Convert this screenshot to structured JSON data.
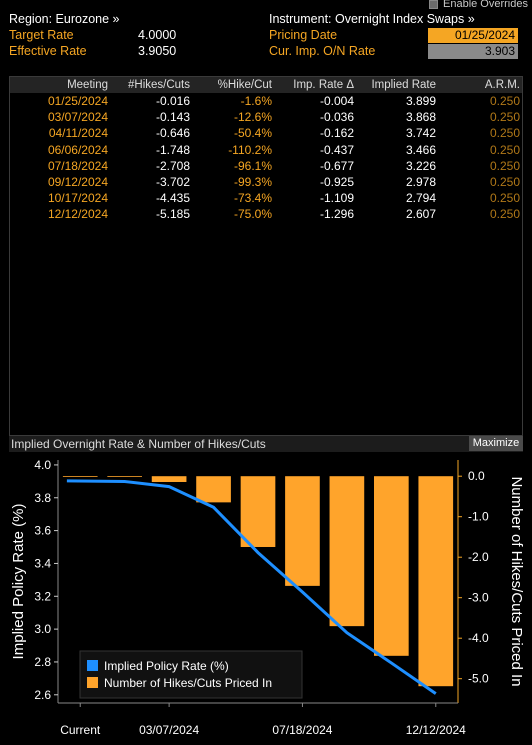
{
  "header": {
    "enable_overrides": "Enable Overrides",
    "region": "Region: Eurozone »",
    "instrument": "Instrument: Overnight Index Swaps »",
    "target_rate_label": "Target Rate",
    "target_rate_value": "4.0000",
    "effective_rate_label": "Effective Rate",
    "effective_rate_value": "3.9050",
    "pricing_date_label": "Pricing Date",
    "pricing_date_value": "01/25/2024",
    "cur_imp_label": "Cur. Imp. O/N Rate",
    "cur_imp_value": "3.903"
  },
  "table": {
    "columns": [
      "Meeting",
      "#Hikes/Cuts",
      "%Hike/Cut",
      "Imp. Rate Δ",
      "Implied Rate",
      "A.R.M."
    ],
    "rows": [
      [
        "01/25/2024",
        "-0.016",
        "-1.6%",
        "-0.004",
        "3.899",
        "0.250"
      ],
      [
        "03/07/2024",
        "-0.143",
        "-12.6%",
        "-0.036",
        "3.868",
        "0.250"
      ],
      [
        "04/11/2024",
        "-0.646",
        "-50.4%",
        "-0.162",
        "3.742",
        "0.250"
      ],
      [
        "06/06/2024",
        "-1.748",
        "-110.2%",
        "-0.437",
        "3.466",
        "0.250"
      ],
      [
        "07/18/2024",
        "-2.708",
        "-96.1%",
        "-0.677",
        "3.226",
        "0.250"
      ],
      [
        "09/12/2024",
        "-3.702",
        "-99.3%",
        "-0.925",
        "2.978",
        "0.250"
      ],
      [
        "10/17/2024",
        "-4.435",
        "-73.4%",
        "-1.109",
        "2.794",
        "0.250"
      ],
      [
        "12/12/2024",
        "-5.185",
        "-75.0%",
        "-1.296",
        "2.607",
        "0.250"
      ]
    ]
  },
  "chart_panel": {
    "title": "Implied Overnight Rate & Number of Hikes/Cuts",
    "maximize_label": "Maximize"
  },
  "chart_data": {
    "type": "bar",
    "categories": [
      "Current",
      "01/25/2024",
      "03/07/2024",
      "04/11/2024",
      "06/06/2024",
      "07/18/2024",
      "09/12/2024",
      "10/17/2024",
      "12/12/2024"
    ],
    "x_tick_labels": [
      "Current",
      "03/07/2024",
      "07/18/2024",
      "12/12/2024"
    ],
    "series": [
      {
        "name": "Implied Policy Rate (%)",
        "type": "line",
        "axis": "left",
        "color": "#1e8fff",
        "values": [
          3.903,
          3.899,
          3.868,
          3.742,
          3.466,
          3.226,
          2.978,
          2.794,
          2.607
        ]
      },
      {
        "name": "Number of Hikes/Cuts Priced In",
        "type": "bar",
        "axis": "right",
        "color": "#ffa42b",
        "values": [
          0,
          -0.016,
          -0.143,
          -0.646,
          -1.748,
          -2.708,
          -3.702,
          -4.435,
          -5.185
        ]
      }
    ],
    "ylabel": "Implied Policy Rate (%)",
    "ylabel_right": "Number of Hikes/Cuts Priced In",
    "ylim": [
      2.55,
      4.03
    ],
    "ylim_right": [
      -5.6,
      0.4
    ],
    "yticks": [
      "4.0",
      "3.8",
      "3.6",
      "3.4",
      "3.2",
      "3.0",
      "2.8",
      "2.6"
    ],
    "yticks_right": [
      "0.0",
      "-1.0",
      "-2.0",
      "-3.0",
      "-4.0",
      "-5.0"
    ],
    "legend_position": "bottom-left",
    "grid": false
  }
}
